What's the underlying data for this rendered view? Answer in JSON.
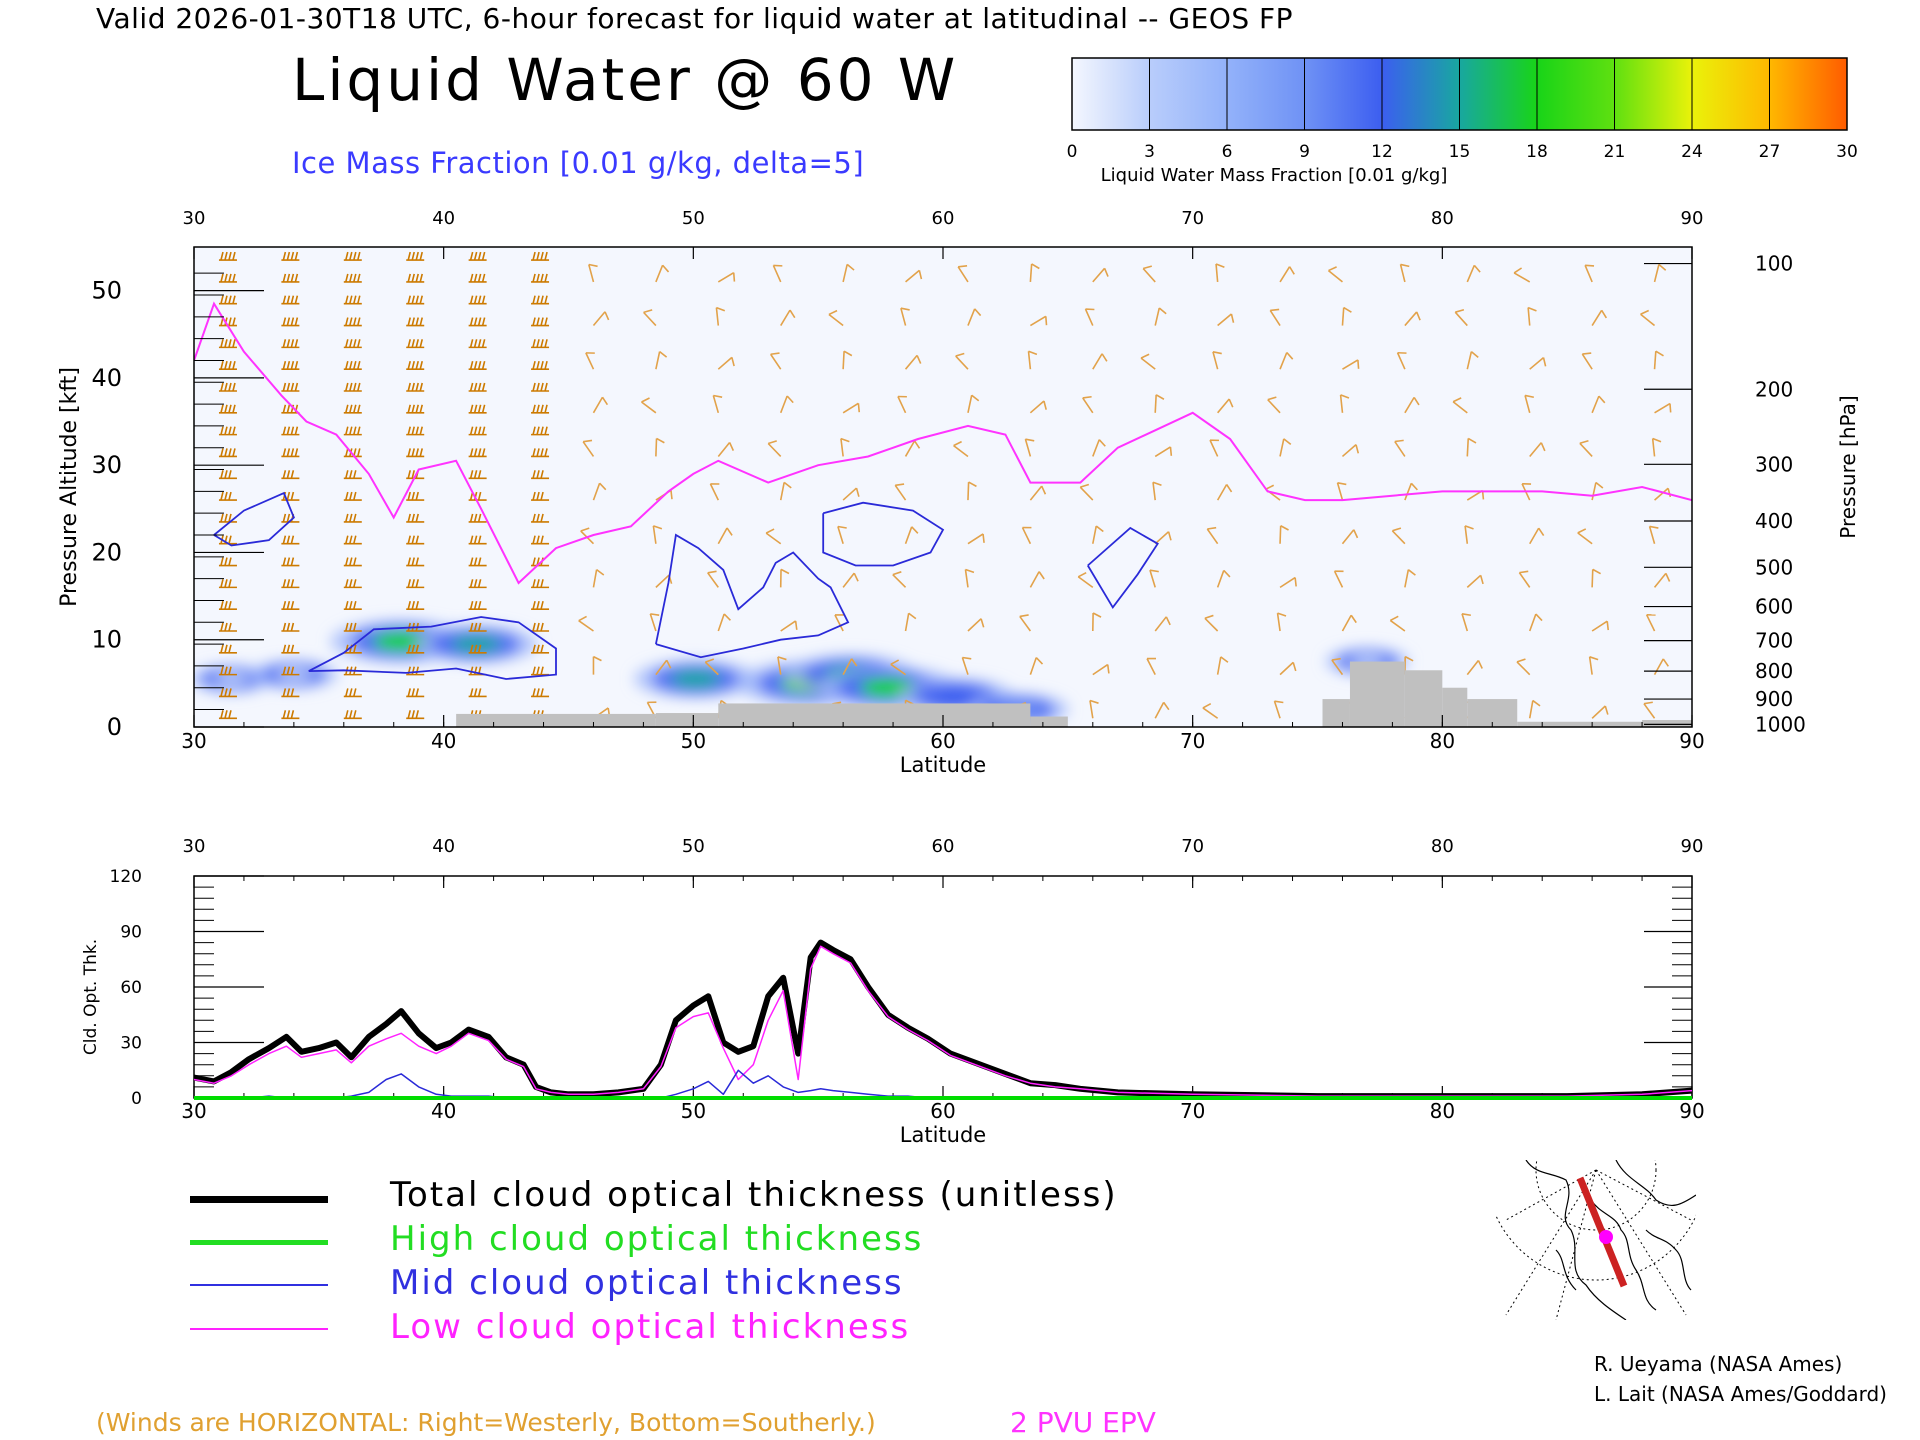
{
  "header": {
    "text": "Valid 2026-01-30T18 UTC, 6-hour forecast for liquid water at latitudinal -- GEOS FP",
    "title": "Liquid Water @ 60 W",
    "subtitle": "Ice Mass Fraction [0.01 g/kg, delta=5]"
  },
  "colorbar": {
    "title": "Liquid Water Mass Fraction [0.01 g/kg]",
    "ticks": [
      "0",
      "3",
      "6",
      "9",
      "12",
      "15",
      "18",
      "21",
      "24",
      "27",
      "30"
    ],
    "colors": [
      "#f4f7fe",
      "#b9cdfb",
      "#93b2fa",
      "#6f92f5",
      "#3c5ef0",
      "#18a7a0",
      "#18d418",
      "#5fe010",
      "#eaf20a",
      "#ffb800",
      "#ff5c00"
    ]
  },
  "chart_data": [
    {
      "type": "heatmap",
      "title": "Liquid Water @ 60 W",
      "xlabel": "Latitude",
      "ylabel": "Pressure Altitude [kft]",
      "y2label": "Pressure [hPa]",
      "xlim": [
        30,
        90
      ],
      "ylim": [
        0,
        55
      ],
      "x_ticks": [
        "30",
        "40",
        "50",
        "60",
        "70",
        "80",
        "90"
      ],
      "y_ticks": [
        "0",
        "10",
        "20",
        "30",
        "40",
        "50"
      ],
      "pressure_ticks": [
        {
          "label": "100",
          "kft": 53.1
        },
        {
          "label": "200",
          "kft": 38.7
        },
        {
          "label": "300",
          "kft": 30.1
        },
        {
          "label": "400",
          "kft": 23.6
        },
        {
          "label": "500",
          "kft": 18.3
        },
        {
          "label": "600",
          "kft": 13.8
        },
        {
          "label": "700",
          "kft": 9.9
        },
        {
          "label": "800",
          "kft": 6.4
        },
        {
          "label": "900",
          "kft": 3.2
        },
        {
          "label": "1000",
          "kft": 0.3
        }
      ],
      "liquid_water_blobs": [
        {
          "lat": 31.5,
          "kft": 5.5,
          "value": 3
        },
        {
          "lat": 34.0,
          "kft": 6.0,
          "value": 4
        },
        {
          "lat": 38.3,
          "kft": 9.8,
          "value": 19
        },
        {
          "lat": 41.3,
          "kft": 9.5,
          "value": 14
        },
        {
          "lat": 50.1,
          "kft": 5.5,
          "value": 14
        },
        {
          "lat": 54.7,
          "kft": 5.0,
          "value": 21
        },
        {
          "lat": 56.3,
          "kft": 6.0,
          "value": 16
        },
        {
          "lat": 57.8,
          "kft": 4.5,
          "value": 19
        },
        {
          "lat": 60.5,
          "kft": 3.5,
          "value": 12
        },
        {
          "lat": 63.0,
          "kft": 2.0,
          "value": 8
        },
        {
          "lat": 77.0,
          "kft": 7.5,
          "value": 3
        }
      ],
      "ice_contours": [
        {
          "points": [
            [
              30.8,
              22
            ],
            [
              32,
              24.8
            ],
            [
              33.6,
              26.8
            ],
            [
              34,
              24
            ],
            [
              33,
              21.4
            ],
            [
              31.5,
              20.8
            ],
            [
              30.8,
              22
            ]
          ]
        },
        {
          "points": [
            [
              36,
              8.5
            ],
            [
              37.2,
              11.2
            ],
            [
              39.5,
              11.5
            ],
            [
              41.5,
              12.6
            ],
            [
              43,
              12
            ],
            [
              44.5,
              9
            ],
            [
              44.5,
              6
            ],
            [
              42.5,
              5.5
            ],
            [
              40.5,
              6.7
            ],
            [
              38.5,
              6.2
            ],
            [
              36,
              6.5
            ],
            [
              34.6,
              6.4
            ],
            [
              36,
              8.5
            ]
          ]
        },
        {
          "points": [
            [
              48.5,
              9.5
            ],
            [
              49,
              16.5
            ],
            [
              49.3,
              22
            ],
            [
              50.2,
              20.5
            ],
            [
              51.2,
              18
            ],
            [
              51.8,
              13.5
            ],
            [
              52.8,
              16
            ],
            [
              53.3,
              18.8
            ],
            [
              54,
              20
            ],
            [
              55,
              17
            ],
            [
              55.5,
              16
            ],
            [
              56.2,
              12
            ],
            [
              55,
              10.5
            ],
            [
              53.5,
              10
            ],
            [
              52,
              9
            ],
            [
              50.3,
              8
            ],
            [
              48.5,
              9.5
            ]
          ]
        },
        {
          "points": [
            [
              55.2,
              24.5
            ],
            [
              56.8,
              25.7
            ],
            [
              58.8,
              24.8
            ],
            [
              60,
              22.6
            ],
            [
              59.5,
              20
            ],
            [
              58,
              18.5
            ],
            [
              56.5,
              18.5
            ],
            [
              55.2,
              20
            ],
            [
              55.2,
              24.5
            ]
          ]
        },
        {
          "points": [
            [
              65.8,
              18.5
            ],
            [
              67.5,
              22.8
            ],
            [
              68.6,
              21
            ],
            [
              67.8,
              17.5
            ],
            [
              66.8,
              13.7
            ],
            [
              65.8,
              18.5
            ]
          ]
        }
      ],
      "pv2_line": {
        "lat": [
          30,
          30.8,
          32,
          33.5,
          34.5,
          35.7,
          37,
          38,
          39,
          40.5,
          41.5,
          43,
          44.5,
          46,
          47.5,
          49,
          50,
          51,
          53,
          55,
          57,
          59,
          61,
          62.5,
          63.5,
          65.5,
          67,
          68.5,
          70,
          71.5,
          73,
          74.5,
          76,
          78,
          80,
          82,
          84,
          86,
          88,
          90
        ],
        "kft": [
          42,
          48.5,
          43,
          38,
          35,
          33.5,
          29,
          24,
          29.5,
          30.5,
          25,
          16.5,
          20.5,
          22,
          23,
          27,
          29,
          30.5,
          28,
          30,
          31,
          33,
          34.5,
          33.5,
          28,
          28,
          32,
          34,
          36,
          33,
          27,
          26,
          26,
          26.5,
          27,
          27,
          27,
          26.5,
          27.5,
          26
        ]
      },
      "terrain_bars": [
        {
          "lat0": 40.5,
          "lat1": 48.5,
          "kft": 1.5
        },
        {
          "lat0": 48.5,
          "lat1": 51,
          "kft": 1.6
        },
        {
          "lat0": 51,
          "lat1": 63.5,
          "kft": 2.7
        },
        {
          "lat0": 63.5,
          "lat1": 65,
          "kft": 1.2
        },
        {
          "lat0": 75.2,
          "lat1": 76.3,
          "kft": 3.2
        },
        {
          "lat0": 76.3,
          "lat1": 78.5,
          "kft": 7.5
        },
        {
          "lat0": 78.5,
          "lat1": 80,
          "kft": 6.5
        },
        {
          "lat0": 80,
          "lat1": 81,
          "kft": 4.5
        },
        {
          "lat0": 81,
          "lat1": 83,
          "kft": 3.2
        },
        {
          "lat0": 83,
          "lat1": 88,
          "kft": 0.6
        },
        {
          "lat0": 88,
          "lat1": 90,
          "kft": 0.8
        }
      ],
      "wind_barbs_note": "Winds are HORIZONTAL"
    },
    {
      "type": "line",
      "xlabel": "Latitude",
      "ylabel": "Cld. Opt. Thk.",
      "xlim": [
        30,
        90
      ],
      "ylim": [
        0,
        120
      ],
      "x_ticks": [
        "30",
        "40",
        "50",
        "60",
        "70",
        "80",
        "90"
      ],
      "y_ticks": [
        "0",
        "30",
        "60",
        "90",
        "120"
      ],
      "x": [
        30,
        30.8,
        31.5,
        32.2,
        33,
        33.7,
        34.3,
        35,
        35.7,
        36.3,
        37,
        37.7,
        38.3,
        39,
        39.7,
        40.3,
        41,
        41.8,
        42.5,
        43.2,
        43.7,
        44.3,
        45,
        46,
        47,
        48,
        48.7,
        49.3,
        50,
        50.6,
        51.2,
        51.8,
        52.4,
        53,
        53.6,
        54.2,
        54.7,
        55.1,
        55.6,
        56.3,
        57,
        57.8,
        58.6,
        59.4,
        60.3,
        61.5,
        62.5,
        63.5,
        64.5,
        65.5,
        67,
        70,
        75,
        80,
        85,
        88,
        90
      ],
      "series": [
        {
          "name": "Total cloud optical thickness (unitless)",
          "color": "#000000",
          "values": [
            11,
            9,
            14,
            21,
            27,
            33,
            25,
            27,
            30,
            22,
            33,
            40,
            47,
            35,
            27,
            30,
            37,
            33,
            22,
            18,
            6,
            3,
            2,
            2,
            3,
            5,
            18,
            42,
            50,
            55,
            30,
            25,
            28,
            55,
            65,
            24,
            76,
            84,
            80,
            75,
            60,
            45,
            38,
            32,
            24,
            18,
            13,
            8,
            7,
            5,
            3,
            2,
            1,
            1,
            1,
            2,
            4
          ]
        },
        {
          "name": "High cloud optical thickness",
          "color": "#00dd00",
          "values": [
            0,
            0,
            0,
            0,
            0,
            0,
            0,
            0,
            0,
            0,
            0,
            0,
            0,
            0,
            0,
            0,
            0,
            0,
            0,
            0,
            0,
            0,
            0,
            0,
            0,
            0,
            0,
            0,
            0,
            0,
            0,
            0,
            0,
            0,
            0,
            0,
            0,
            0,
            0,
            0,
            0,
            0,
            0,
            0,
            0,
            0,
            0,
            0,
            0,
            0,
            0,
            0,
            0,
            0,
            0,
            0,
            0
          ]
        },
        {
          "name": "Mid cloud optical thickness",
          "color": "#2a2ad8",
          "values": [
            0,
            0,
            0,
            0,
            1,
            0,
            0,
            0,
            0,
            1,
            3,
            10,
            13,
            6,
            2,
            1,
            1,
            1,
            0,
            0,
            0,
            0,
            0,
            0,
            0,
            0,
            0,
            2,
            5,
            9,
            2,
            15,
            8,
            12,
            6,
            3,
            4,
            5,
            4,
            3,
            2,
            1,
            1,
            0,
            0,
            0,
            0,
            0,
            0,
            0,
            0,
            0,
            0,
            0,
            0,
            0,
            0
          ]
        },
        {
          "name": "Low cloud optical thickness",
          "color": "#ff22ff",
          "values": [
            10,
            8,
            12,
            18,
            24,
            28,
            22,
            24,
            26,
            19,
            28,
            32,
            35,
            28,
            24,
            28,
            35,
            31,
            21,
            17,
            5,
            3,
            2,
            2,
            3,
            5,
            17,
            38,
            44,
            46,
            27,
            10,
            18,
            42,
            58,
            10,
            70,
            82,
            78,
            73,
            58,
            44,
            37,
            31,
            23,
            17,
            12,
            8,
            6,
            5,
            3,
            2,
            1,
            1,
            1,
            2,
            4
          ]
        }
      ]
    }
  ],
  "legend": {
    "items": [
      {
        "label": "Total cloud optical thickness (unitless)",
        "color": "#000000"
      },
      {
        "label": "High cloud optical thickness",
        "color": "#22dd22"
      },
      {
        "label": "Mid cloud optical thickness",
        "color": "#3030e0"
      },
      {
        "label": "Low cloud optical thickness",
        "color": "#ff22ff"
      }
    ]
  },
  "credits": {
    "line1": "R. Ueyama (NASA Ames)",
    "line2": "L. Lait (NASA Ames/Goddard)"
  },
  "notes": {
    "winds": "(Winds are HORIZONTAL: Right=Westerly, Bottom=Southerly.)",
    "pvu": "2 PVU EPV"
  },
  "colors": {
    "ice_contour": "#2a2ad8",
    "pv_line": "#ff33ff",
    "terrain": "#c0c0c0",
    "barb": "#cc7a00",
    "barb_light": "#e2a24a",
    "map_track": "#cc2222",
    "map_marker": "#ff00ff"
  }
}
